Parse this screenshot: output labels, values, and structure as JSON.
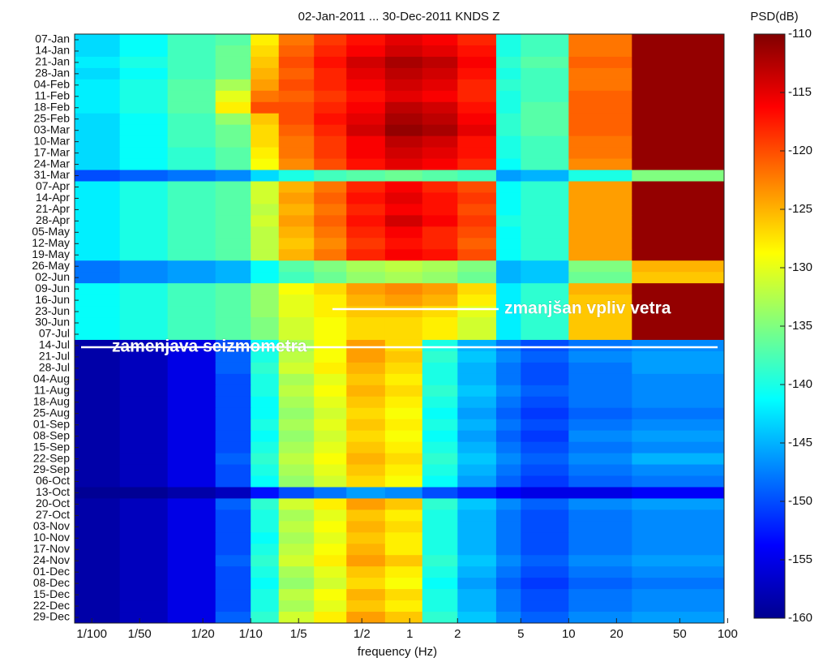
{
  "chart_data": {
    "type": "heatmap",
    "title": "02-Jan-2011 ... 30-Dec-2011  KNDS  Z",
    "x_label": "frequency (Hz)",
    "colorbar_label": "PSD(dB)",
    "log_x": true,
    "xlim": [
      0.0078,
      95
    ],
    "xticks": [
      {
        "value": 0.01,
        "label": "1/100"
      },
      {
        "value": 0.02,
        "label": "1/50"
      },
      {
        "value": 0.05,
        "label": "1/20"
      },
      {
        "value": 0.1,
        "label": "1/10"
      },
      {
        "value": 0.2,
        "label": "1/5"
      },
      {
        "value": 0.5,
        "label": "1/2"
      },
      1,
      2,
      5,
      10,
      20,
      50,
      100
    ],
    "xbins": [
      0.0078,
      0.015,
      0.03,
      0.06,
      0.1,
      0.15,
      0.25,
      0.4,
      0.7,
      1.2,
      2,
      3.5,
      5,
      10,
      25,
      95
    ],
    "categories": [
      "07-Jan",
      "14-Jan",
      "21-Jan",
      "28-Jan",
      "04-Feb",
      "11-Feb",
      "18-Feb",
      "25-Feb",
      "03-Mar",
      "10-Mar",
      "17-Mar",
      "24-Mar",
      "31-Mar",
      "07-Apr",
      "14-Apr",
      "21-Apr",
      "28-Apr",
      "05-May",
      "12-May",
      "19-May",
      "26-May",
      "02-Jun",
      "09-Jun",
      "16-Jun",
      "23-Jun",
      "30-Jun",
      "07-Jul",
      "14-Jul",
      "21-Jul",
      "28-Jul",
      "04-Aug",
      "11-Aug",
      "18-Aug",
      "25-Aug",
      "01-Sep",
      "08-Sep",
      "15-Sep",
      "22-Sep",
      "29-Sep",
      "06-Oct",
      "13-Oct",
      "20-Oct",
      "27-Oct",
      "03-Nov",
      "10-Nov",
      "17-Nov",
      "24-Nov",
      "01-Dec",
      "08-Dec",
      "15-Dec",
      "22-Dec",
      "29-Dec"
    ],
    "z": [
      [
        -143,
        -141,
        -138,
        -137,
        -128,
        -122,
        -119,
        -117,
        -115,
        -116,
        -118,
        -140,
        -138,
        -122,
        -111
      ],
      [
        -143,
        -141,
        -138,
        -136,
        -127,
        -121,
        -118,
        -116,
        -114,
        -115,
        -117,
        -140,
        -138,
        -122,
        -111
      ],
      [
        -142,
        -140,
        -138,
        -136,
        -126,
        -120,
        -117,
        -114,
        -112,
        -113,
        -116,
        -139,
        -137,
        -121,
        -111
      ],
      [
        -143,
        -141,
        -138,
        -136,
        -125,
        -121,
        -118,
        -115,
        -113,
        -114,
        -117,
        -140,
        -138,
        -122,
        -111
      ],
      [
        -142,
        -140,
        -137,
        -133,
        -124,
        -120,
        -118,
        -116,
        -114,
        -115,
        -118,
        -139,
        -138,
        -122,
        -111
      ],
      [
        -142,
        -140,
        -137,
        -130,
        -122,
        -121,
        -119,
        -117,
        -115,
        -116,
        -118,
        -140,
        -138,
        -121,
        -111
      ],
      [
        -142,
        -140,
        -137,
        -128,
        -120,
        -120,
        -118,
        -116,
        -113,
        -114,
        -117,
        -140,
        -137,
        -121,
        -111
      ],
      [
        -143,
        -141,
        -138,
        -134,
        -126,
        -120,
        -117,
        -115,
        -112,
        -113,
        -116,
        -139,
        -137,
        -121,
        -111
      ],
      [
        -143,
        -141,
        -138,
        -136,
        -127,
        -121,
        -118,
        -114,
        -111,
        -112,
        -115,
        -139,
        -137,
        -121,
        -111
      ],
      [
        -143,
        -141,
        -138,
        -136,
        -127,
        -122,
        -119,
        -116,
        -113,
        -114,
        -117,
        -140,
        -138,
        -122,
        -111
      ],
      [
        -143,
        -141,
        -139,
        -137,
        -128,
        -122,
        -119,
        -116,
        -114,
        -115,
        -117,
        -140,
        -138,
        -122,
        -111
      ],
      [
        -143,
        -141,
        -139,
        -137,
        -129,
        -123,
        -120,
        -117,
        -115,
        -116,
        -118,
        -141,
        -138,
        -123,
        -111
      ],
      [
        -150,
        -149,
        -148,
        -147,
        -143,
        -140,
        -138,
        -137,
        -136,
        -137,
        -138,
        -146,
        -145,
        -140,
        -135
      ],
      [
        -142,
        -140,
        -138,
        -137,
        -131,
        -125,
        -122,
        -118,
        -116,
        -118,
        -120,
        -141,
        -139,
        -124,
        -111
      ],
      [
        -142,
        -140,
        -138,
        -137,
        -131,
        -124,
        -121,
        -117,
        -115,
        -117,
        -119,
        -141,
        -139,
        -124,
        -111
      ],
      [
        -142,
        -140,
        -138,
        -137,
        -132,
        -125,
        -122,
        -118,
        -116,
        -117,
        -120,
        -141,
        -139,
        -124,
        -111
      ],
      [
        -142,
        -140,
        -138,
        -137,
        -131,
        -124,
        -121,
        -117,
        -114,
        -116,
        -119,
        -140,
        -139,
        -124,
        -111
      ],
      [
        -142,
        -140,
        -138,
        -137,
        -132,
        -125,
        -122,
        -118,
        -116,
        -118,
        -120,
        -141,
        -139,
        -124,
        -111
      ],
      [
        -142,
        -140,
        -138,
        -137,
        -132,
        -126,
        -123,
        -119,
        -117,
        -118,
        -121,
        -141,
        -139,
        -124,
        -111
      ],
      [
        -142,
        -140,
        -138,
        -137,
        -132,
        -125,
        -122,
        -118,
        -116,
        -117,
        -120,
        -141,
        -139,
        -124,
        -111
      ],
      [
        -148,
        -147,
        -146,
        -145,
        -141,
        -137,
        -135,
        -133,
        -132,
        -133,
        -135,
        -145,
        -144,
        -135,
        -125
      ],
      [
        -148,
        -147,
        -146,
        -145,
        -141,
        -138,
        -136,
        -134,
        -133,
        -134,
        -136,
        -145,
        -144,
        -136,
        -126
      ],
      [
        -141,
        -140,
        -138,
        -137,
        -134,
        -129,
        -127,
        -124,
        -123,
        -124,
        -127,
        -142,
        -139,
        -125,
        -111
      ],
      [
        -141,
        -140,
        -138,
        -137,
        -134,
        -130,
        -128,
        -125,
        -124,
        -125,
        -128,
        -142,
        -139,
        -126,
        -111
      ],
      [
        -141,
        -140,
        -138,
        -137,
        -134,
        -130,
        -128,
        -126,
        -126,
        -127,
        -130,
        -142,
        -139,
        -126,
        -111
      ],
      [
        -141,
        -140,
        -138,
        -137,
        -135,
        -131,
        -129,
        -127,
        -127,
        -128,
        -131,
        -142,
        -139,
        -126,
        -111
      ],
      [
        -141,
        -140,
        -138,
        -137,
        -135,
        -131,
        -129,
        -127,
        -127,
        -128,
        -131,
        -142,
        -139,
        -126,
        -111
      ],
      [
        -158,
        -157,
        -155,
        -150,
        -141,
        -133,
        -129,
        -124,
        -127,
        -140,
        -145,
        -148,
        -150,
        -148,
        -147
      ],
      [
        -158,
        -157,
        -155,
        -149,
        -140,
        -132,
        -129,
        -124,
        -126,
        -139,
        -144,
        -147,
        -149,
        -147,
        -146
      ],
      [
        -158,
        -157,
        -155,
        -149,
        -139,
        -131,
        -128,
        -125,
        -127,
        -140,
        -145,
        -148,
        -150,
        -148,
        -146
      ],
      [
        -158,
        -157,
        -155,
        -150,
        -140,
        -133,
        -130,
        -126,
        -128,
        -140,
        -145,
        -148,
        -150,
        -148,
        -147
      ],
      [
        -158,
        -157,
        -155,
        -150,
        -140,
        -132,
        -129,
        -125,
        -127,
        -139,
        -144,
        -147,
        -149,
        -148,
        -147
      ],
      [
        -158,
        -157,
        -155,
        -150,
        -141,
        -133,
        -130,
        -126,
        -128,
        -140,
        -145,
        -148,
        -150,
        -148,
        -147
      ],
      [
        -158,
        -157,
        -155,
        -150,
        -141,
        -134,
        -131,
        -127,
        -129,
        -141,
        -146,
        -149,
        -151,
        -149,
        -148
      ],
      [
        -158,
        -157,
        -155,
        -150,
        -140,
        -133,
        -130,
        -126,
        -128,
        -140,
        -145,
        -148,
        -150,
        -148,
        -147
      ],
      [
        -158,
        -157,
        -155,
        -150,
        -141,
        -134,
        -131,
        -127,
        -129,
        -141,
        -146,
        -149,
        -151,
        -147,
        -146
      ],
      [
        -158,
        -157,
        -155,
        -150,
        -140,
        -133,
        -130,
        -126,
        -128,
        -140,
        -145,
        -148,
        -150,
        -148,
        -147
      ],
      [
        -158,
        -157,
        -155,
        -149,
        -139,
        -132,
        -129,
        -125,
        -127,
        -139,
        -144,
        -147,
        -149,
        -147,
        -145
      ],
      [
        -158,
        -157,
        -155,
        -150,
        -140,
        -133,
        -130,
        -126,
        -128,
        -140,
        -145,
        -148,
        -150,
        -148,
        -147
      ],
      [
        -158,
        -157,
        -155,
        -150,
        -141,
        -134,
        -131,
        -127,
        -129,
        -141,
        -146,
        -149,
        -151,
        -149,
        -148
      ],
      [
        -159,
        -159,
        -158,
        -157,
        -153,
        -150,
        -148,
        -146,
        -147,
        -150,
        -152,
        -154,
        -155,
        -155,
        -154
      ],
      [
        -158,
        -157,
        -155,
        -149,
        -139,
        -131,
        -128,
        -124,
        -126,
        -139,
        -144,
        -147,
        -149,
        -147,
        -146
      ],
      [
        -158,
        -157,
        -155,
        -150,
        -140,
        -133,
        -130,
        -126,
        -128,
        -140,
        -145,
        -148,
        -150,
        -148,
        -147
      ],
      [
        -158,
        -157,
        -155,
        -150,
        -140,
        -132,
        -129,
        -125,
        -127,
        -140,
        -145,
        -148,
        -150,
        -148,
        -147
      ],
      [
        -158,
        -157,
        -155,
        -150,
        -141,
        -133,
        -130,
        -126,
        -128,
        -140,
        -145,
        -148,
        -150,
        -148,
        -147
      ],
      [
        -158,
        -157,
        -155,
        -150,
        -140,
        -132,
        -129,
        -125,
        -128,
        -140,
        -145,
        -148,
        -150,
        -148,
        -147
      ],
      [
        -158,
        -157,
        -155,
        -149,
        -139,
        -131,
        -128,
        -124,
        -126,
        -139,
        -144,
        -147,
        -149,
        -147,
        -146
      ],
      [
        -158,
        -157,
        -155,
        -150,
        -140,
        -133,
        -130,
        -126,
        -128,
        -140,
        -145,
        -148,
        -150,
        -148,
        -147
      ],
      [
        -158,
        -157,
        -155,
        -150,
        -141,
        -134,
        -131,
        -127,
        -129,
        -141,
        -146,
        -149,
        -151,
        -149,
        -148
      ],
      [
        -158,
        -157,
        -155,
        -150,
        -140,
        -132,
        -129,
        -125,
        -127,
        -140,
        -145,
        -148,
        -150,
        -148,
        -147
      ],
      [
        -158,
        -157,
        -155,
        -150,
        -140,
        -133,
        -130,
        -126,
        -128,
        -140,
        -145,
        -148,
        -150,
        -148,
        -147
      ],
      [
        -158,
        -157,
        -155,
        -149,
        -139,
        -131,
        -128,
        -124,
        -126,
        -139,
        -144,
        -147,
        -149,
        -147,
        -146
      ]
    ],
    "zlim": [
      -160,
      -110
    ],
    "zticks": [
      -160,
      -155,
      -150,
      -145,
      -140,
      -135,
      -130,
      -125,
      -120,
      -115,
      -110
    ],
    "colormap": "jet",
    "annotations": [
      "zmanjšan vpliv vetra",
      "zamenjava seizmometra"
    ]
  }
}
